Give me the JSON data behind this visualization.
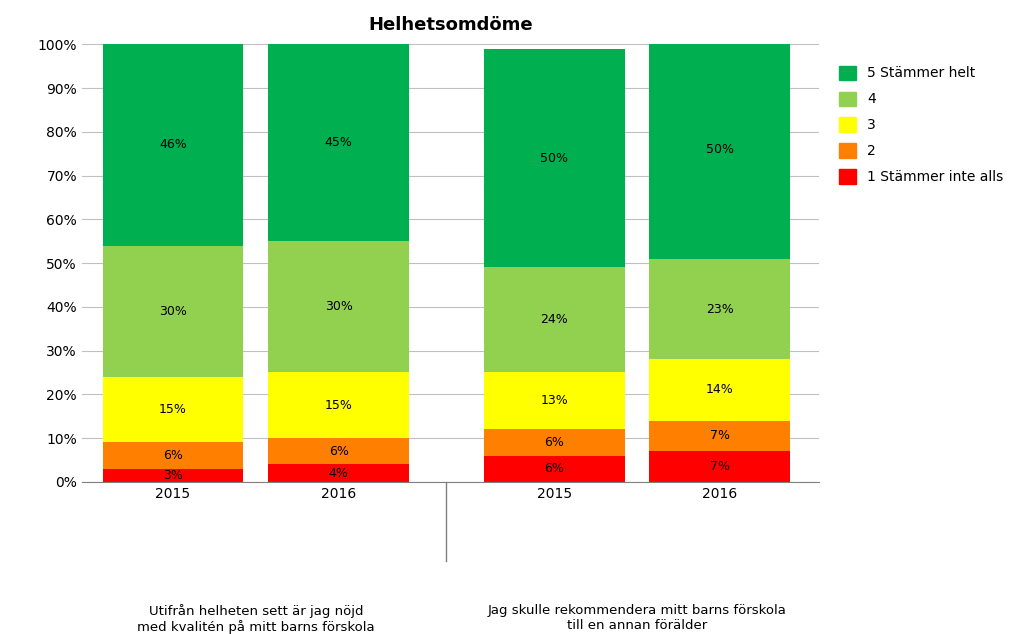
{
  "title": "Helhetsomdöme",
  "groups": [
    {
      "label": "2015",
      "values": [
        3,
        6,
        15,
        30,
        46
      ]
    },
    {
      "label": "2016",
      "values": [
        4,
        6,
        15,
        30,
        45
      ]
    },
    {
      "label": "2015",
      "values": [
        6,
        6,
        13,
        24,
        50
      ]
    },
    {
      "label": "2016",
      "values": [
        7,
        7,
        14,
        23,
        50
      ]
    }
  ],
  "colors": [
    "#ff0000",
    "#ff8000",
    "#ffff00",
    "#92d050",
    "#00b050"
  ],
  "legend_labels": [
    "5 Stämmer helt",
    "4",
    "3",
    "2",
    "1 Stämmer inte alls"
  ],
  "ylim": [
    0,
    100
  ],
  "ytick_labels": [
    "0%",
    "10%",
    "20%",
    "30%",
    "40%",
    "50%",
    "60%",
    "70%",
    "80%",
    "90%",
    "100%"
  ],
  "group1_label": "Utifrån helheten sett är jag nöjd\nmed kvalitén på mitt barns förskola",
  "group2_label": "Jag skulle rekommendera mitt barns förskola\ntill en annan förälder",
  "background_color": "#ffffff",
  "title_fontsize": 13,
  "tick_fontsize": 10,
  "label_fontsize": 9.5,
  "bar_label_fontsize": 9,
  "positions": [
    0,
    1,
    2.3,
    3.3
  ],
  "bar_width": 0.85,
  "xlim": [
    -0.55,
    3.9
  ]
}
